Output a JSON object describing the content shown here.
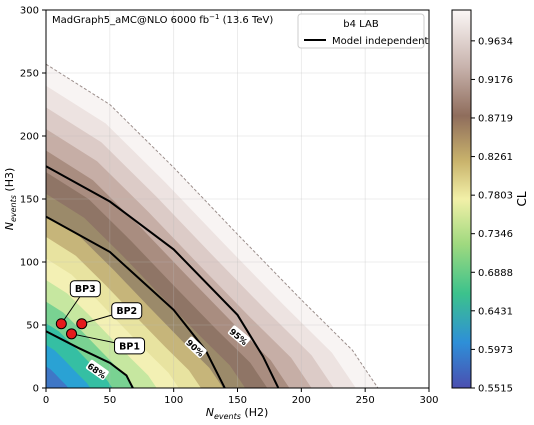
{
  "chart_data": {
    "type": "heatmap",
    "annotation": "MadGraph5_aMC@NLO 6000 fb",
    "annotation_sup": "−1",
    "annotation_tail": " (13.6 TeV)",
    "xlabel_main": "N",
    "xlabel_sub": "events",
    "xlabel_tail": " (H2)",
    "ylabel_main": "N",
    "ylabel_sub": "events",
    "ylabel_tail": " (H3)",
    "xlim": [
      0,
      300
    ],
    "ylim": [
      0,
      300
    ],
    "xticks": [
      "0",
      "50",
      "100",
      "150",
      "200",
      "250",
      "300"
    ],
    "yticks": [
      "0",
      "50",
      "100",
      "150",
      "200",
      "250",
      "300"
    ],
    "grid": true,
    "legend": {
      "title": "b4 LAB",
      "entries": [
        {
          "label": "Model independent",
          "color": "#000000"
        }
      ],
      "placement": "top-right"
    },
    "colorbar": {
      "label": "CL",
      "range": [
        0.5515,
        1.0
      ],
      "ticks": [
        "0.9634",
        "0.9176",
        "0.8719",
        "0.8261",
        "0.7803",
        "0.7346",
        "0.6888",
        "0.6431",
        "0.5973",
        "0.5515"
      ],
      "colormap": "gist_earth"
    },
    "contours": [
      {
        "label": "68%",
        "points": [
          [
            0,
            45
          ],
          [
            25,
            32
          ],
          [
            50,
            20
          ],
          [
            63,
            10
          ],
          [
            68,
            0
          ]
        ]
      },
      {
        "label": "90%",
        "points": [
          [
            0,
            136
          ],
          [
            50,
            108
          ],
          [
            100,
            62
          ],
          [
            125,
            30
          ],
          [
            140,
            0
          ]
        ]
      },
      {
        "label": "95%",
        "points": [
          [
            0,
            176
          ],
          [
            50,
            148
          ],
          [
            100,
            110
          ],
          [
            150,
            58
          ],
          [
            170,
            25
          ],
          [
            182,
            0
          ]
        ]
      }
    ],
    "outer_boundary": [
      [
        0,
        257
      ],
      [
        50,
        225
      ],
      [
        100,
        175
      ],
      [
        150,
        122
      ],
      [
        200,
        70
      ],
      [
        240,
        30
      ],
      [
        260,
        0
      ]
    ],
    "points": [
      {
        "name": "BP1",
        "x": 20,
        "y": 43
      },
      {
        "name": "BP2",
        "x": 28,
        "y": 51
      },
      {
        "name": "BP3",
        "x": 12,
        "y": 51
      }
    ]
  }
}
